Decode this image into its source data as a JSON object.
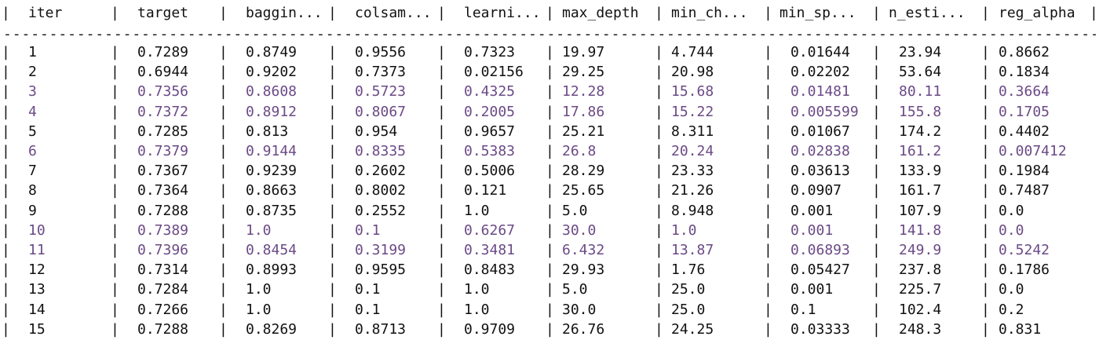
{
  "table": {
    "columns": [
      "iter",
      "target",
      "baggin...",
      "colsam...",
      "learni...",
      "max_depth",
      "min_ch...",
      "min_sp...",
      "n_esti...",
      "reg_alpha"
    ],
    "separator": "-----------------------------------------------------------------------------------------------------------------------------------------------",
    "rows": [
      {
        "highlight": false,
        "cells": [
          "1",
          "0.7289",
          "0.8749",
          "0.9556",
          "0.7323",
          "19.97",
          "4.744",
          "0.01644",
          "23.94",
          "0.8662"
        ]
      },
      {
        "highlight": false,
        "cells": [
          "2",
          "0.6944",
          "0.9202",
          "0.7373",
          "0.02156",
          "29.25",
          "20.98",
          "0.02202",
          "53.64",
          "0.1834"
        ]
      },
      {
        "highlight": true,
        "cells": [
          "3",
          "0.7356",
          "0.8608",
          "0.5723",
          "0.4325",
          "12.28",
          "15.68",
          "0.01481",
          "80.11",
          "0.3664"
        ]
      },
      {
        "highlight": true,
        "cells": [
          "4",
          "0.7372",
          "0.8912",
          "0.8067",
          "0.2005",
          "17.86",
          "15.22",
          "0.005599",
          "155.8",
          "0.1705"
        ]
      },
      {
        "highlight": false,
        "cells": [
          "5",
          "0.7285",
          "0.813",
          "0.954",
          "0.9657",
          "25.21",
          "8.311",
          "0.01067",
          "174.2",
          "0.4402"
        ]
      },
      {
        "highlight": true,
        "cells": [
          "6",
          "0.7379",
          "0.9144",
          "0.8335",
          "0.5383",
          "26.8",
          "20.24",
          "0.02838",
          "161.2",
          "0.007412"
        ]
      },
      {
        "highlight": false,
        "cells": [
          "7",
          "0.7367",
          "0.9239",
          "0.2602",
          "0.5006",
          "28.29",
          "23.33",
          "0.03613",
          "133.9",
          "0.1984"
        ]
      },
      {
        "highlight": false,
        "cells": [
          "8",
          "0.7364",
          "0.8663",
          "0.8002",
          "0.121",
          "25.65",
          "21.26",
          "0.0907",
          "161.7",
          "0.7487"
        ]
      },
      {
        "highlight": false,
        "cells": [
          "9",
          "0.7288",
          "0.8735",
          "0.2552",
          "1.0",
          "5.0",
          "8.948",
          "0.001",
          "107.9",
          "0.0"
        ]
      },
      {
        "highlight": true,
        "cells": [
          "10",
          "0.7389",
          "1.0",
          "0.1",
          "0.6267",
          "30.0",
          "1.0",
          "0.001",
          "141.8",
          "0.0"
        ]
      },
      {
        "highlight": true,
        "cells": [
          "11",
          "0.7396",
          "0.8454",
          "0.3199",
          "0.3481",
          "6.432",
          "13.87",
          "0.06893",
          "249.9",
          "0.5242"
        ]
      },
      {
        "highlight": false,
        "cells": [
          "12",
          "0.7314",
          "0.8993",
          "0.9595",
          "0.8483",
          "29.93",
          "1.76",
          "0.05427",
          "237.8",
          "0.1786"
        ]
      },
      {
        "highlight": false,
        "cells": [
          "13",
          "0.7284",
          "1.0",
          "0.1",
          "1.0",
          "5.0",
          "25.0",
          "0.001",
          "225.7",
          "0.0"
        ]
      },
      {
        "highlight": false,
        "cells": [
          "14",
          "0.7266",
          "1.0",
          "0.1",
          "1.0",
          "30.0",
          "25.0",
          "0.1",
          "102.4",
          "0.2"
        ]
      },
      {
        "highlight": false,
        "cells": [
          "15",
          "0.7288",
          "0.8269",
          "0.8713",
          "0.9709",
          "26.76",
          "24.25",
          "0.03333",
          "248.3",
          "0.831"
        ]
      }
    ]
  }
}
